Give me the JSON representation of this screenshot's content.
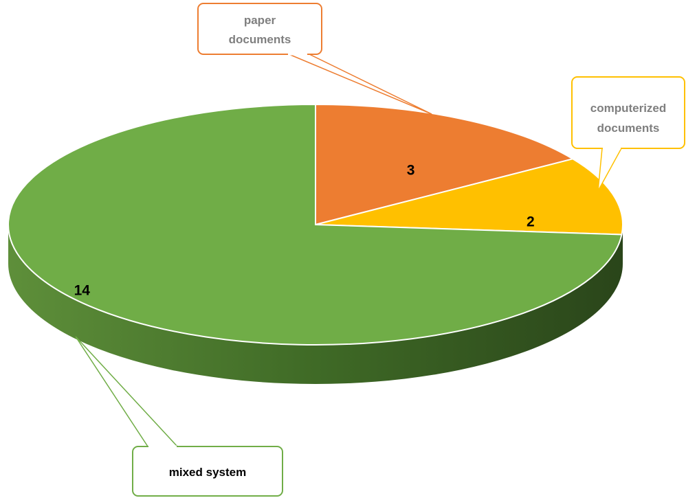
{
  "chart_data": {
    "type": "pie",
    "style": "3d",
    "slices": [
      {
        "label": "paper documents",
        "value": 3,
        "color": "#ED7D31"
      },
      {
        "label": "computerized documents",
        "value": 2,
        "color": "#FFC000"
      },
      {
        "label": "mixed system",
        "value": 14,
        "color": "#70AD47"
      }
    ],
    "legend": "none",
    "data_labels": "inside",
    "category_labels": "callouts"
  }
}
